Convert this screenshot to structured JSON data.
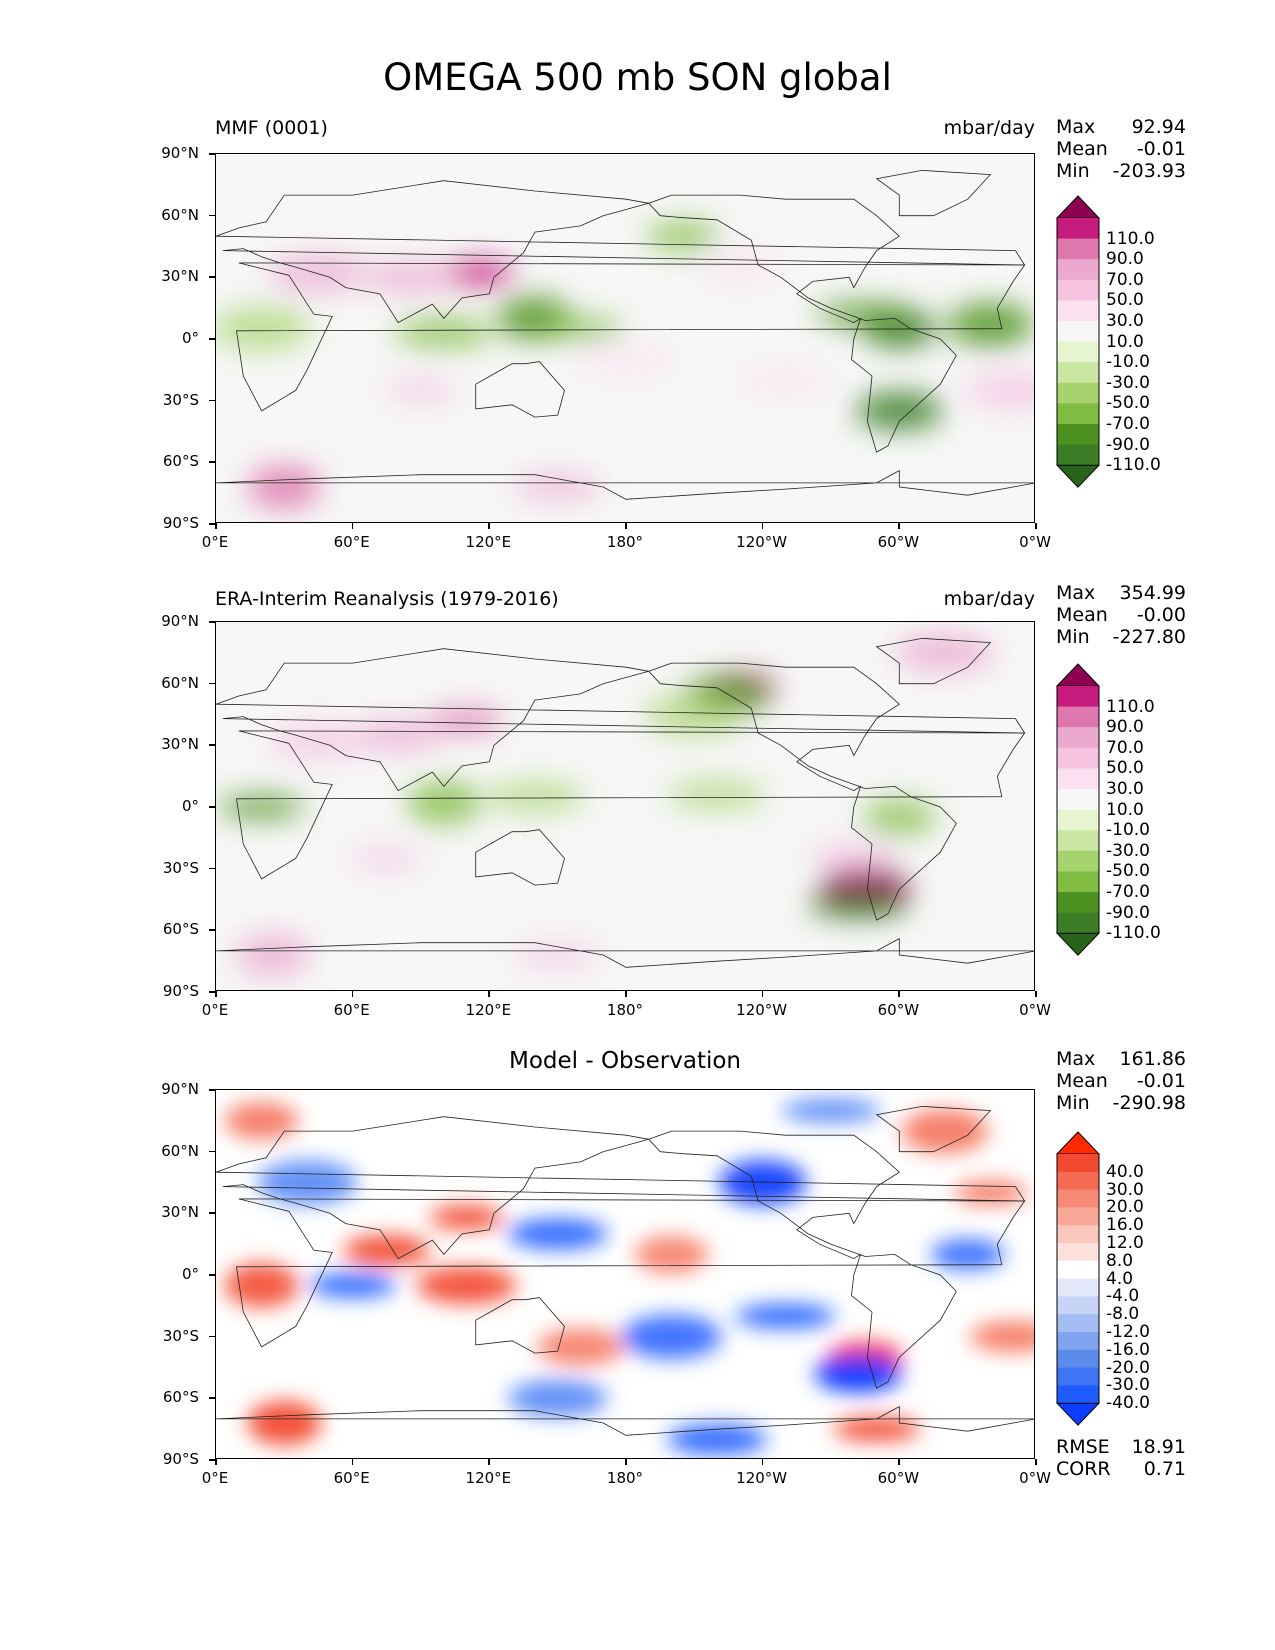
{
  "title": "OMEGA 500 mb SON global",
  "axes": {
    "yticks": [
      "90°N",
      "60°N",
      "30°N",
      "0°",
      "30°S",
      "60°S",
      "90°S"
    ],
    "xticks": [
      "0°E",
      "60°E",
      "120°E",
      "180°",
      "120°W",
      "60°W",
      "0°W"
    ]
  },
  "colors": {
    "green_pink": [
      "#276419",
      "#3a7d26",
      "#4d9221",
      "#7fbc41",
      "#a7d36f",
      "#c9e6a2",
      "#e6f5d0",
      "#f7f7f7",
      "#fbe0ef",
      "#f5c3e0",
      "#eba9cf",
      "#de77ae",
      "#c51b7d",
      "#8e0152"
    ],
    "diverging": [
      "#0a3dff",
      "#1e5cff",
      "#3d75f5",
      "#5a8be8",
      "#7fa3ee",
      "#a3bcf2",
      "#c6d4f6",
      "#e3e9fa",
      "#ffffff",
      "#fde2dc",
      "#fbc7bc",
      "#f9a898",
      "#f78a76",
      "#f56a52",
      "#f24a30",
      "#ff2a00"
    ]
  },
  "panels": [
    {
      "title_left": "MMF (0001)",
      "units": "mbar/day",
      "stats": {
        "max_label": "Max",
        "max": "92.94",
        "mean_label": "Mean",
        "mean": "-0.01",
        "min_label": "Min",
        "min": "-203.93"
      },
      "colorbar_labels": [
        "110.0",
        "90.0",
        "70.0",
        "50.0",
        "30.0",
        "10.0",
        "-10.0",
        "-30.0",
        "-50.0",
        "-70.0",
        "-90.0",
        "-110.0"
      ]
    },
    {
      "title_left": "ERA-Interim Reanalysis (1979-2016)",
      "units": "mbar/day",
      "stats": {
        "max_label": "Max",
        "max": "354.99",
        "mean_label": "Mean",
        "mean": "-0.00",
        "min_label": "Min",
        "min": "-227.80"
      },
      "colorbar_labels": [
        "110.0",
        "90.0",
        "70.0",
        "50.0",
        "30.0",
        "10.0",
        "-10.0",
        "-30.0",
        "-50.0",
        "-70.0",
        "-90.0",
        "-110.0"
      ]
    },
    {
      "title_center": "Model - Observation",
      "stats": {
        "max_label": "Max",
        "max": "161.86",
        "mean_label": "Mean",
        "mean": "-0.01",
        "min_label": "Min",
        "min": "-290.98"
      },
      "colorbar_labels": [
        "40.0",
        "30.0",
        "20.0",
        "16.0",
        "12.0",
        "8.0",
        "4.0",
        "-4.0",
        "-8.0",
        "-12.0",
        "-16.0",
        "-20.0",
        "-30.0",
        "-40.0"
      ],
      "metrics": {
        "rmse_label": "RMSE",
        "rmse": "18.91",
        "corr_label": "CORR",
        "corr": "0.71"
      }
    }
  ],
  "chart_data": [
    {
      "type": "heatmap",
      "title": "MMF (0001)",
      "units": "mbar/day",
      "xlim": [
        0,
        360
      ],
      "ylim": [
        -90,
        90
      ],
      "levels": [
        -110,
        -90,
        -70,
        -50,
        -30,
        -10,
        10,
        30,
        50,
        70,
        90,
        110
      ],
      "blobs": [
        {
          "lon": 115,
          "lat": 32,
          "value": 95
        },
        {
          "lon": 85,
          "lat": 30,
          "value": 60
        },
        {
          "lon": 45,
          "lat": 32,
          "value": 55
        },
        {
          "lon": 140,
          "lat": 10,
          "value": -85
        },
        {
          "lon": 160,
          "lat": 5,
          "value": -60
        },
        {
          "lon": 100,
          "lat": 3,
          "value": -55
        },
        {
          "lon": 300,
          "lat": 5,
          "value": -95
        },
        {
          "lon": 340,
          "lat": 7,
          "value": -80
        },
        {
          "lon": 285,
          "lat": 12,
          "value": -70
        },
        {
          "lon": 205,
          "lat": 50,
          "value": -55
        },
        {
          "lon": 300,
          "lat": -35,
          "value": -90
        },
        {
          "lon": 20,
          "lat": 5,
          "value": -45
        },
        {
          "lon": 90,
          "lat": -25,
          "value": 40
        },
        {
          "lon": 250,
          "lat": -20,
          "value": 30
        },
        {
          "lon": 350,
          "lat": -25,
          "value": 45
        },
        {
          "lon": 30,
          "lat": -72,
          "value": 75
        },
        {
          "lon": 150,
          "lat": -72,
          "value": 55
        },
        {
          "lon": 180,
          "lat": -10,
          "value": 20
        },
        {
          "lon": 230,
          "lat": 35,
          "value": 30
        }
      ]
    },
    {
      "type": "heatmap",
      "title": "ERA-Interim Reanalysis (1979-2016)",
      "units": "mbar/day",
      "xlim": [
        0,
        360
      ],
      "ylim": [
        -90,
        90
      ],
      "levels": [
        -110,
        -90,
        -70,
        -50,
        -30,
        -10,
        10,
        30,
        50,
        70,
        90,
        110
      ],
      "blobs": [
        {
          "lon": 110,
          "lat": 42,
          "value": 80
        },
        {
          "lon": 80,
          "lat": 35,
          "value": 60
        },
        {
          "lon": 45,
          "lat": 32,
          "value": 40
        },
        {
          "lon": 100,
          "lat": 2,
          "value": -65
        },
        {
          "lon": 20,
          "lat": 0,
          "value": -70
        },
        {
          "lon": 140,
          "lat": 5,
          "value": -45
        },
        {
          "lon": 300,
          "lat": -5,
          "value": -50
        },
        {
          "lon": 285,
          "lat": -40,
          "value": 140
        },
        {
          "lon": 282,
          "lat": -48,
          "value": -100
        },
        {
          "lon": 230,
          "lat": 58,
          "value": 110
        },
        {
          "lon": 225,
          "lat": 55,
          "value": -80
        },
        {
          "lon": 210,
          "lat": 45,
          "value": -40
        },
        {
          "lon": 75,
          "lat": -25,
          "value": 35
        },
        {
          "lon": 280,
          "lat": -25,
          "value": 45
        },
        {
          "lon": 320,
          "lat": 75,
          "value": 65
        },
        {
          "lon": 25,
          "lat": -72,
          "value": 60
        },
        {
          "lon": 150,
          "lat": -72,
          "value": 45
        },
        {
          "lon": 220,
          "lat": 6,
          "value": -35
        }
      ]
    },
    {
      "type": "heatmap",
      "title": "Model - Observation",
      "xlim": [
        0,
        360
      ],
      "ylim": [
        -90,
        90
      ],
      "levels": [
        -40,
        -30,
        -20,
        -16,
        -12,
        -8,
        -4,
        4,
        8,
        12,
        16,
        20,
        30,
        40
      ],
      "blobs": [
        {
          "lon": 110,
          "lat": 28,
          "value": 40
        },
        {
          "lon": 75,
          "lat": 12,
          "value": 40
        },
        {
          "lon": 110,
          "lat": -5,
          "value": 38
        },
        {
          "lon": 20,
          "lat": -5,
          "value": 35
        },
        {
          "lon": 60,
          "lat": -5,
          "value": -38
        },
        {
          "lon": 150,
          "lat": 20,
          "value": -35
        },
        {
          "lon": 200,
          "lat": 10,
          "value": 25
        },
        {
          "lon": 240,
          "lat": 45,
          "value": -40
        },
        {
          "lon": 250,
          "lat": -20,
          "value": -38
        },
        {
          "lon": 285,
          "lat": -40,
          "value": 45
        },
        {
          "lon": 282,
          "lat": -48,
          "value": -45
        },
        {
          "lon": 200,
          "lat": -30,
          "value": -30
        },
        {
          "lon": 340,
          "lat": 40,
          "value": 30
        },
        {
          "lon": 350,
          "lat": -30,
          "value": 30
        },
        {
          "lon": 150,
          "lat": -60,
          "value": -25
        },
        {
          "lon": 30,
          "lat": -72,
          "value": 40
        },
        {
          "lon": 290,
          "lat": -75,
          "value": 40
        },
        {
          "lon": 220,
          "lat": -80,
          "value": -35
        },
        {
          "lon": 20,
          "lat": 75,
          "value": 30
        },
        {
          "lon": 320,
          "lat": 70,
          "value": 30
        },
        {
          "lon": 270,
          "lat": 80,
          "value": -25
        },
        {
          "lon": 330,
          "lat": 10,
          "value": -30
        },
        {
          "lon": 160,
          "lat": -35,
          "value": 25
        },
        {
          "lon": 40,
          "lat": 45,
          "value": -25
        }
      ]
    }
  ]
}
